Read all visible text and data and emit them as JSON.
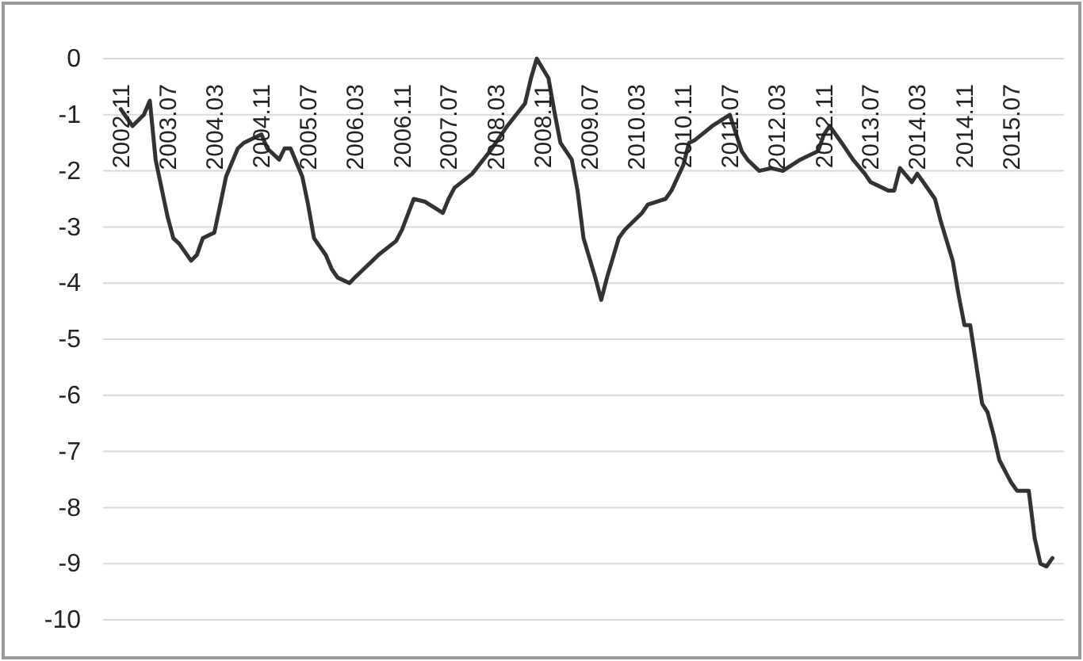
{
  "chart_data": {
    "type": "line",
    "x": [
      "2002-11",
      "2003-01",
      "2003-03",
      "2003-04",
      "2003-05",
      "2003-07",
      "2003-08",
      "2003-09",
      "2003-11",
      "2003-12",
      "2004-01",
      "2004-03",
      "2004-04",
      "2004-05",
      "2004-07",
      "2004-08",
      "2004-11",
      "2004-12",
      "2005-02",
      "2005-03",
      "2005-04",
      "2005-06",
      "2005-07",
      "2005-08",
      "2005-10",
      "2005-11",
      "2005-12",
      "2006-02",
      "2006-03",
      "2006-04",
      "2006-06",
      "2006-07",
      "2006-10",
      "2006-11",
      "2007-01",
      "2007-03",
      "2007-06",
      "2007-07",
      "2007-08",
      "2007-11",
      "2008-02",
      "2008-05",
      "2008-08",
      "2008-09",
      "2008-10",
      "2008-12",
      "2009-01",
      "2009-02",
      "2009-04",
      "2009-05",
      "2009-06",
      "2009-08",
      "2009-09",
      "2009-10",
      "2009-12",
      "2010-01",
      "2010-04",
      "2010-05",
      "2010-08",
      "2010-09",
      "2010-11",
      "2010-12",
      "2011-01",
      "2011-04",
      "2011-07",
      "2011-09",
      "2011-10",
      "2011-12",
      "2012-02",
      "2012-04",
      "2012-07",
      "2012-10",
      "2012-11",
      "2012-12",
      "2013-02",
      "2013-04",
      "2013-06",
      "2013-07",
      "2013-10",
      "2013-11",
      "2013-12",
      "2014-02",
      "2014-03",
      "2014-04",
      "2014-06",
      "2014-07",
      "2014-09",
      "2014-10",
      "2014-11",
      "2014-12",
      "2015-01",
      "2015-02",
      "2015-03",
      "2015-04",
      "2015-05",
      "2015-07",
      "2015-08",
      "2015-10",
      "2015-11",
      "2015-12",
      "2016-01",
      "2016-02"
    ],
    "series": [
      {
        "color": "#333333",
        "values": [
          -0.9,
          -1.2,
          -1.0,
          -0.75,
          -1.8,
          -2.8,
          -3.2,
          -3.3,
          -3.6,
          -3.5,
          -3.2,
          -3.1,
          -2.6,
          -2.1,
          -1.6,
          -1.5,
          -1.35,
          -1.6,
          -1.8,
          -1.6,
          -1.6,
          -2.1,
          -2.6,
          -3.2,
          -3.5,
          -3.75,
          -3.9,
          -4.0,
          -3.9,
          -3.8,
          -3.6,
          -3.5,
          -3.25,
          -3.05,
          -2.5,
          -2.55,
          -2.75,
          -2.5,
          -2.3,
          -2.05,
          -1.65,
          -1.2,
          -0.8,
          -0.35,
          0,
          -0.35,
          -0.95,
          -1.5,
          -1.8,
          -2.35,
          -3.2,
          -3.9,
          -4.3,
          -3.9,
          -3.2,
          -3.05,
          -2.75,
          -2.6,
          -2.5,
          -2.35,
          -1.9,
          -1.5,
          -1.45,
          -1.2,
          -1.0,
          -1.65,
          -1.8,
          -2.0,
          -1.95,
          -2.0,
          -1.8,
          -1.65,
          -1.35,
          -1.2,
          -1.5,
          -1.8,
          -2.05,
          -2.2,
          -2.35,
          -2.35,
          -1.95,
          -2.2,
          -2.05,
          -2.2,
          -2.5,
          -2.9,
          -3.6,
          -4.2,
          -4.75,
          -4.75,
          -5.45,
          -6.15,
          -6.3,
          -6.7,
          -7.15,
          -7.55,
          -7.7,
          -7.7,
          -8.55,
          -9.0,
          -9.05,
          -8.9
        ]
      }
    ],
    "xlim": [
      "2002-08",
      "2016-04"
    ],
    "xticks": [
      {
        "value": "2002-11",
        "label": "2002.11"
      },
      {
        "value": "2003-07",
        "label": "2003.07"
      },
      {
        "value": "2004-03",
        "label": "2004.03"
      },
      {
        "value": "2004-11",
        "label": "2004.11"
      },
      {
        "value": "2005-07",
        "label": "2005.07"
      },
      {
        "value": "2006-03",
        "label": "2006.03"
      },
      {
        "value": "2006-11",
        "label": "2006.11"
      },
      {
        "value": "2007-07",
        "label": "2007.07"
      },
      {
        "value": "2008-03",
        "label": "2008.03"
      },
      {
        "value": "2008-11",
        "label": "2008.11"
      },
      {
        "value": "2009-07",
        "label": "2009.07"
      },
      {
        "value": "2010-03",
        "label": "2010.03"
      },
      {
        "value": "2010-11",
        "label": "2010.11"
      },
      {
        "value": "2011-07",
        "label": "2011.07"
      },
      {
        "value": "2012-03",
        "label": "2012.03"
      },
      {
        "value": "2012-11",
        "label": "2012.11"
      },
      {
        "value": "2013-07",
        "label": "2013.07"
      },
      {
        "value": "2014-03",
        "label": "2014.03"
      },
      {
        "value": "2014-11",
        "label": "2014.11"
      },
      {
        "value": "2015-07",
        "label": "2015.07"
      }
    ],
    "ylim": [
      -10,
      0
    ],
    "yticks": [
      0,
      -1,
      -2,
      -3,
      -4,
      -5,
      -6,
      -7,
      -8,
      -9,
      -10
    ],
    "grid": "y",
    "marker": "none",
    "line_style": "solid"
  }
}
